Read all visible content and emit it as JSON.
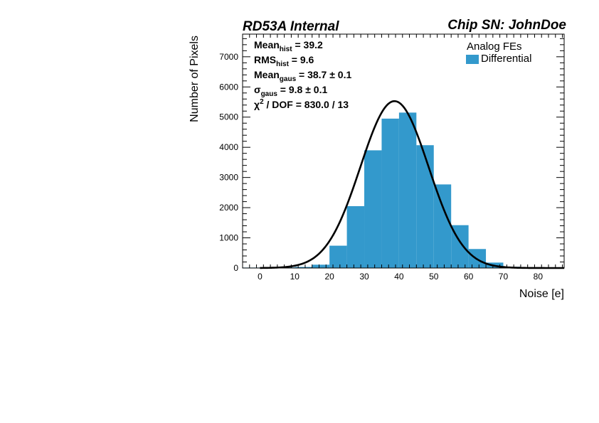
{
  "header": {
    "left": "RD53A Internal",
    "right": "Chip SN: JohnDoe"
  },
  "stats": [
    {
      "base": "Mean",
      "sub": "hist",
      "rest": " = 39.2"
    },
    {
      "base": "RMS",
      "sub": "hist",
      "rest": " = 9.6"
    },
    {
      "base": "Mean",
      "sub": "gaus",
      "rest": " = 38.7 ± 0.1"
    },
    {
      "base": "σ",
      "sub": "gaus",
      "rest": " = 9.8 ± 0.1"
    },
    {
      "base": "χ",
      "sup": "2",
      "rest": " / DOF = 830.0 / 13"
    }
  ],
  "chart_data": {
    "type": "bar",
    "xlabel": "Noise [e]",
    "ylabel": "Number of Pixels",
    "xlim": [
      -5,
      87.5
    ],
    "ylim": [
      0,
      7750
    ],
    "xticks": [
      0,
      10,
      20,
      30,
      40,
      50,
      60,
      70,
      80
    ],
    "yticks": [
      0,
      1000,
      2000,
      3000,
      4000,
      5000,
      6000,
      7000
    ],
    "bin_width": 5,
    "bin_edges": [
      -5,
      0,
      5,
      10,
      15,
      20,
      25,
      30,
      35,
      40,
      45,
      50,
      55,
      60,
      65,
      70,
      75,
      80,
      85
    ],
    "values": [
      15,
      15,
      20,
      35,
      110,
      740,
      2050,
      3900,
      4950,
      5150,
      4070,
      2770,
      1420,
      630,
      180,
      40,
      20,
      10
    ],
    "bar_color": "#3399cc",
    "fit": {
      "type": "gaussian",
      "mean": 38.7,
      "sigma": 9.8,
      "peak": 5530,
      "color": "#000000"
    },
    "legend": {
      "title": "Analog FEs",
      "entries": [
        {
          "label": "Differential",
          "color": "#3399cc"
        }
      ],
      "position": "top-right"
    }
  }
}
